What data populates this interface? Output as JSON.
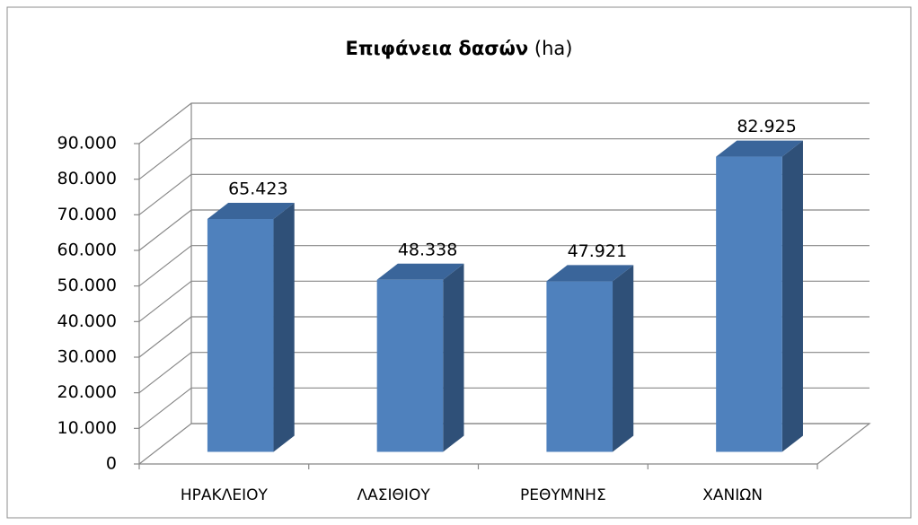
{
  "chart_data": {
    "type": "bar3d",
    "title": "Επιφάνεια δασών",
    "title_unit": "(ha)",
    "categories": [
      "ΗΡΑΚΛΕΙΟΥ",
      "ΛΑΣΙΘΙΟΥ",
      "ΡΕΘΥΜΝΗΣ",
      "ΧΑΝΙΩΝ"
    ],
    "values": [
      65423,
      48338,
      47921,
      82925
    ],
    "value_labels": [
      "65.423",
      "48.338",
      "47.921",
      "82.925"
    ],
    "color": "#4f81bd",
    "ylim": [
      0,
      90000
    ],
    "yticks": [
      0,
      {
        "value": 10000,
        "label": "10.000"
      },
      {
        "value": 20000,
        "label": "20.000"
      },
      {
        "value": 30000,
        "label": "30.000"
      },
      {
        "value": 40000,
        "label": "40.000"
      },
      {
        "value": 50000,
        "label": "50.000"
      },
      {
        "value": 60000,
        "label": "60.000"
      },
      {
        "value": 70000,
        "label": "70.000"
      },
      {
        "value": 80000,
        "label": "80.000"
      },
      {
        "value": 90000,
        "label": "90.000"
      }
    ],
    "grid": true
  }
}
